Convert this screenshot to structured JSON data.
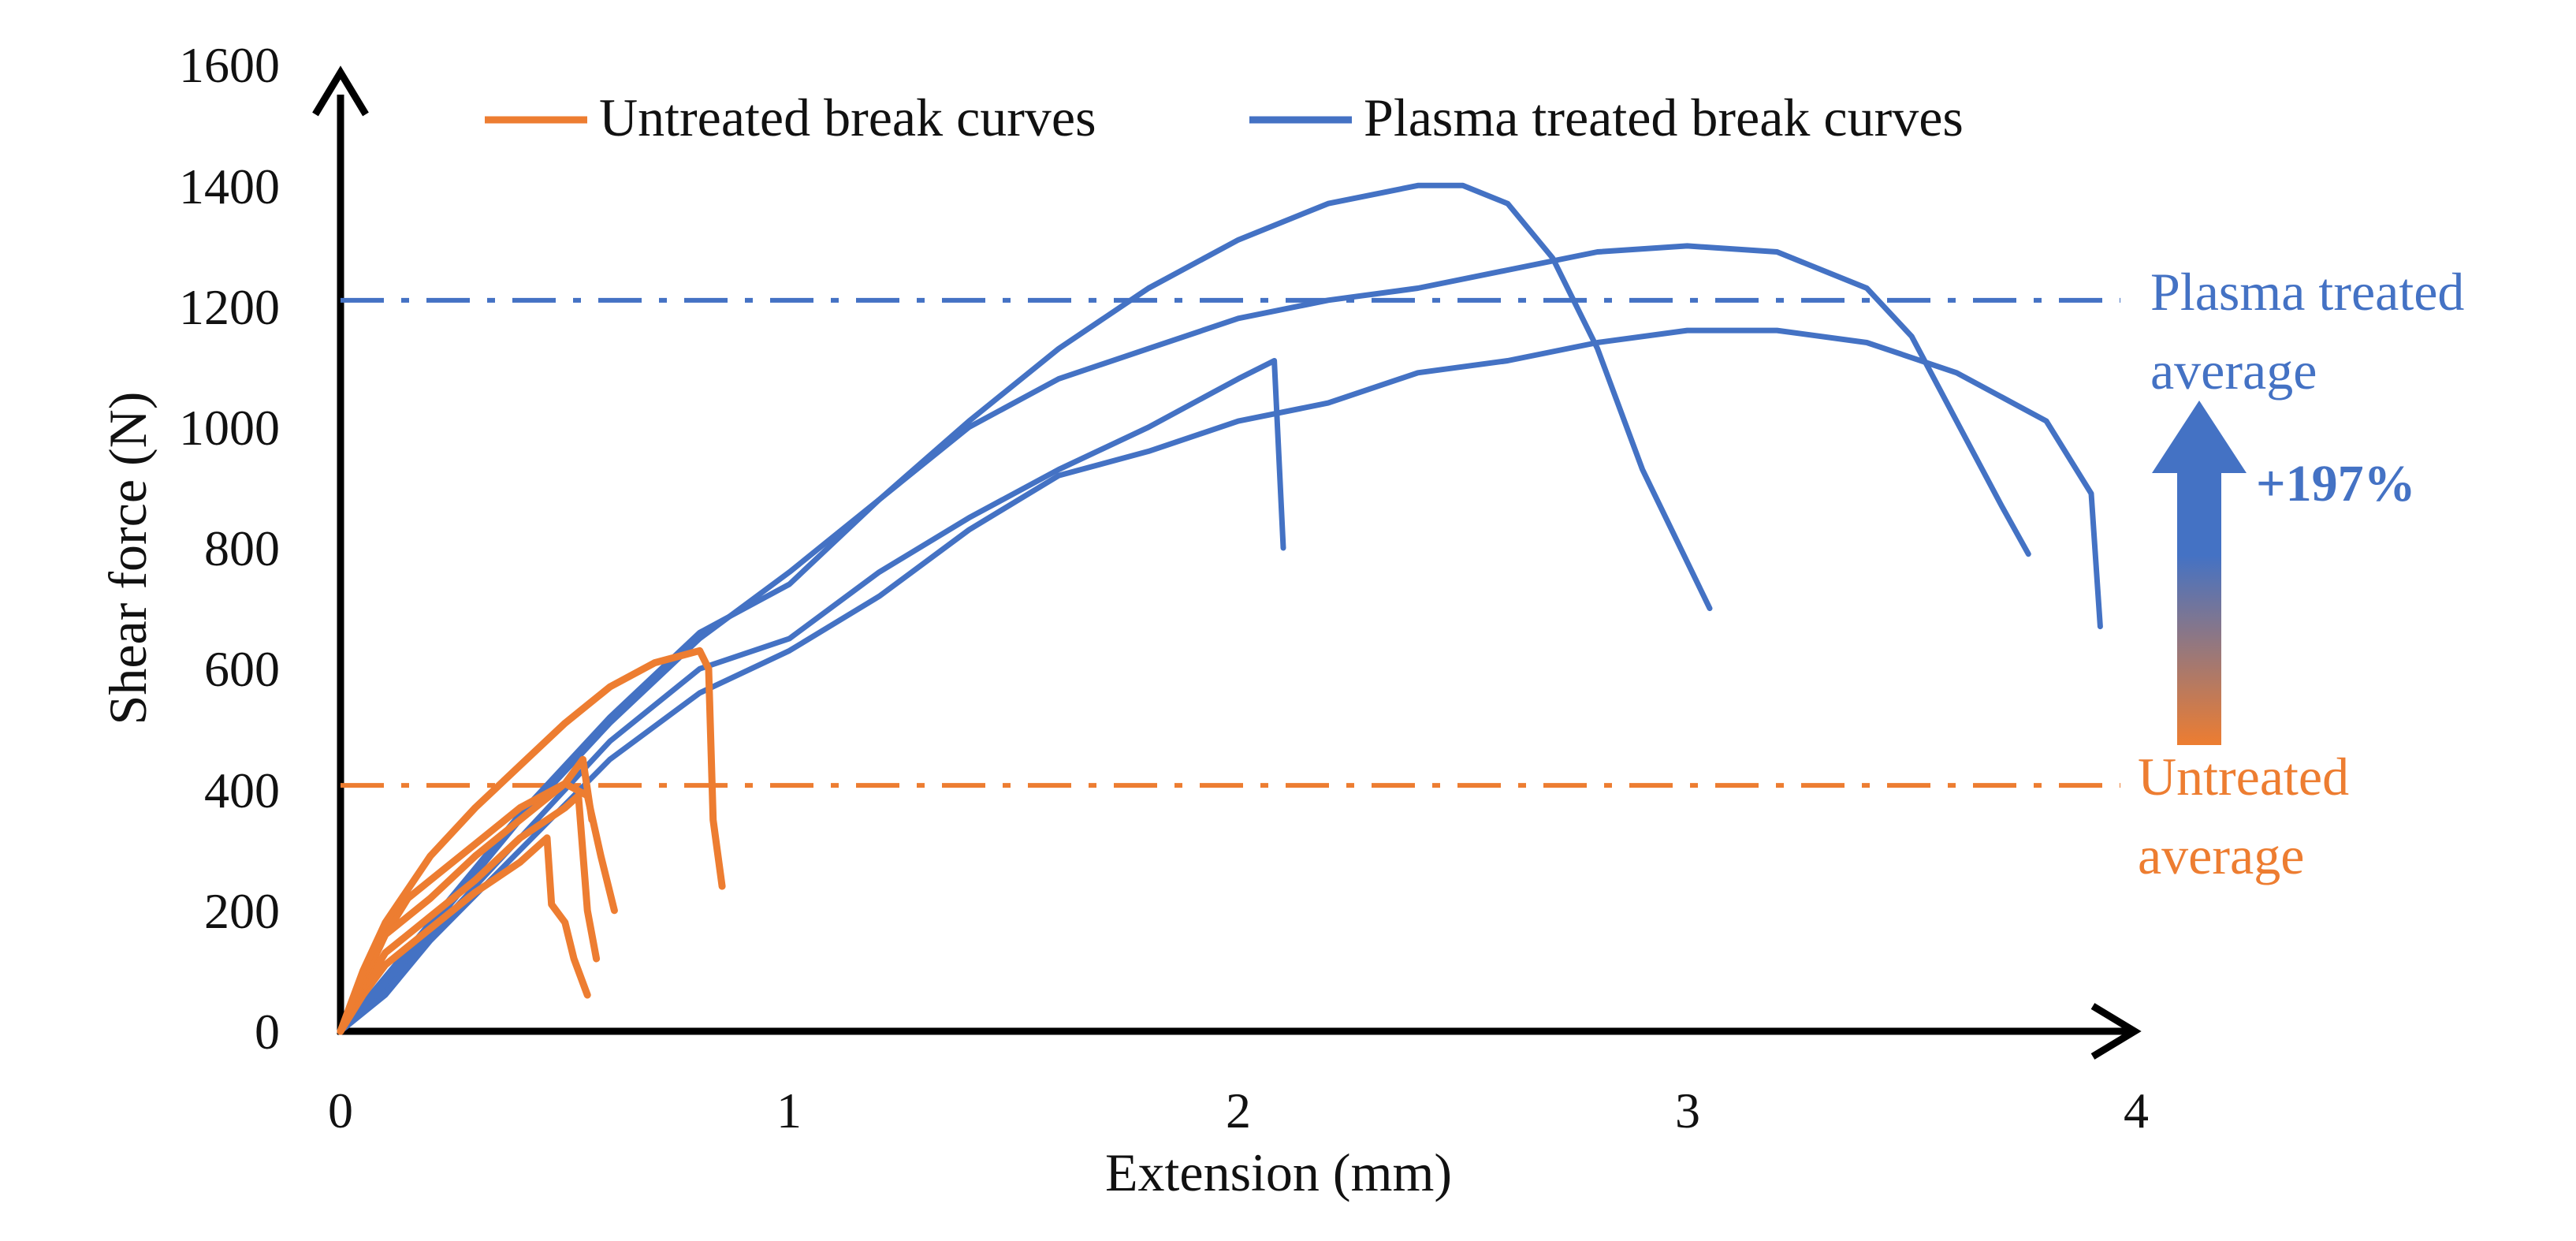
{
  "chart_data": {
    "type": "line",
    "title": "",
    "xlabel": "Extension (mm)",
    "ylabel": "Shear force (N)",
    "xlim": [
      0,
      4
    ],
    "ylim": [
      0,
      1600
    ],
    "xticks": [
      "0",
      "1",
      "2",
      "3",
      "4"
    ],
    "yticks": [
      "0",
      "200",
      "400",
      "600",
      "800",
      "1000",
      "1200",
      "1400",
      "1600"
    ],
    "legend": [
      {
        "name": "Untreated break curves",
        "color": "#ED7D31"
      },
      {
        "name": "Plasma treated break curves",
        "color": "#4472C4"
      }
    ],
    "series": [
      {
        "name": "Untreated break curves",
        "group": "untreated",
        "x": [
          0,
          0.05,
          0.1,
          0.2,
          0.3,
          0.4,
          0.46,
          0.47,
          0.5,
          0.52,
          0.55
        ],
        "y": [
          0,
          60,
          110,
          170,
          230,
          280,
          320,
          210,
          180,
          120,
          60
        ]
      },
      {
        "name": "Untreated break curves",
        "group": "untreated",
        "x": [
          0,
          0.05,
          0.1,
          0.2,
          0.3,
          0.4,
          0.5,
          0.53,
          0.55,
          0.57
        ],
        "y": [
          0,
          70,
          130,
          190,
          250,
          320,
          370,
          390,
          200,
          120
        ]
      },
      {
        "name": "Untreated break curves",
        "group": "untreated",
        "x": [
          0,
          0.05,
          0.1,
          0.15,
          0.2,
          0.3,
          0.4,
          0.5,
          0.55,
          0.58,
          0.61
        ],
        "y": [
          0,
          80,
          160,
          220,
          250,
          310,
          370,
          410,
          390,
          290,
          200
        ]
      },
      {
        "name": "Untreated break curves",
        "group": "untreated",
        "x": [
          0,
          0.05,
          0.1,
          0.2,
          0.3,
          0.4,
          0.5,
          0.54,
          0.56
        ],
        "y": [
          0,
          90,
          160,
          220,
          290,
          350,
          410,
          450,
          350
        ]
      },
      {
        "name": "Untreated break curves",
        "group": "untreated",
        "x": [
          0,
          0.05,
          0.1,
          0.2,
          0.3,
          0.4,
          0.5,
          0.6,
          0.7,
          0.8,
          0.82,
          0.83,
          0.85
        ],
        "y": [
          0,
          100,
          180,
          290,
          370,
          440,
          510,
          570,
          610,
          630,
          600,
          350,
          240
        ]
      },
      {
        "name": "Plasma treated break curves",
        "group": "plasma",
        "x": [
          0,
          0.1,
          0.2,
          0.4,
          0.6,
          0.8,
          1.0,
          1.2,
          1.4,
          1.6,
          1.8,
          2.0,
          2.08,
          2.1
        ],
        "y": [
          0,
          70,
          160,
          320,
          480,
          600,
          650,
          760,
          850,
          930,
          1000,
          1080,
          1110,
          800
        ]
      },
      {
        "name": "Plasma treated break curves",
        "group": "plasma",
        "x": [
          0,
          0.1,
          0.2,
          0.4,
          0.6,
          0.8,
          1.0,
          1.2,
          1.4,
          1.6,
          1.8,
          2.0,
          2.2,
          2.4,
          2.5,
          2.6,
          2.7,
          2.8,
          2.9,
          3.05
        ],
        "y": [
          0,
          90,
          180,
          360,
          520,
          660,
          740,
          880,
          1010,
          1130,
          1230,
          1310,
          1370,
          1400,
          1400,
          1370,
          1280,
          1130,
          930,
          700
        ]
      },
      {
        "name": "Plasma treated break curves",
        "group": "plasma",
        "x": [
          0,
          0.1,
          0.2,
          0.4,
          0.6,
          0.8,
          1.0,
          1.2,
          1.4,
          1.6,
          1.8,
          2.0,
          2.2,
          2.4,
          2.6,
          2.8,
          3.0,
          3.2,
          3.4,
          3.5,
          3.6,
          3.7,
          3.76
        ],
        "y": [
          0,
          80,
          170,
          350,
          510,
          650,
          760,
          880,
          1000,
          1080,
          1130,
          1180,
          1210,
          1230,
          1260,
          1290,
          1300,
          1290,
          1230,
          1150,
          1010,
          870,
          790
        ]
      },
      {
        "name": "Plasma treated break curves",
        "group": "plasma",
        "x": [
          0,
          0.1,
          0.2,
          0.4,
          0.6,
          0.8,
          1.0,
          1.2,
          1.4,
          1.6,
          1.8,
          2.0,
          2.2,
          2.4,
          2.6,
          2.8,
          3.0,
          3.2,
          3.4,
          3.6,
          3.8,
          3.9,
          3.92
        ],
        "y": [
          0,
          60,
          150,
          300,
          450,
          560,
          630,
          720,
          830,
          920,
          960,
          1010,
          1040,
          1090,
          1110,
          1140,
          1160,
          1160,
          1140,
          1090,
          1010,
          890,
          670
        ]
      }
    ],
    "reference_lines": [
      {
        "name": "Plasma treated average",
        "y": 1210,
        "color": "#4472C4",
        "style": "dash-dot",
        "label_lines": [
          "Plasma treated",
          "average"
        ]
      },
      {
        "name": "Untreated average",
        "y": 407,
        "color": "#ED7D31",
        "style": "dash-dot",
        "label_lines": [
          "Untreated",
          "average"
        ]
      }
    ],
    "improvement_annotation": {
      "text": "+197%",
      "color_top": "#4472C4",
      "color_bottom": "#ED7D31"
    }
  }
}
